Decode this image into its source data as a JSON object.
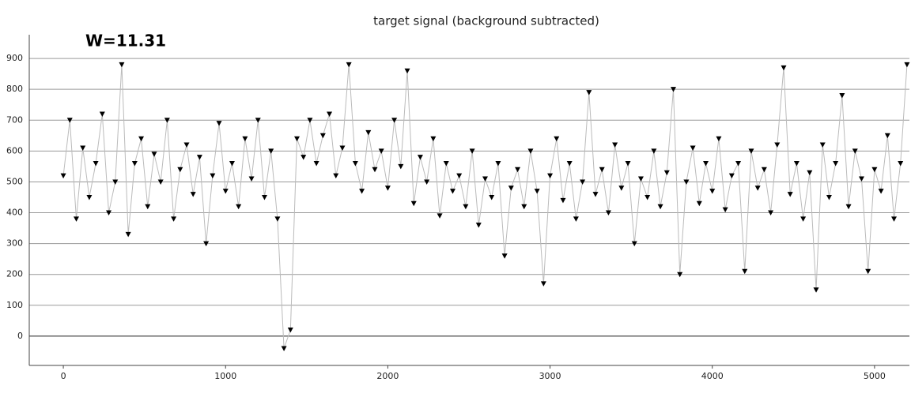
{
  "chart_data": {
    "type": "line",
    "title": "target signal (background subtracted)",
    "annotation": "W=11.31",
    "x": [
      0,
      40,
      80,
      120,
      160,
      200,
      240,
      280,
      320,
      360,
      400,
      440,
      480,
      520,
      560,
      600,
      640,
      680,
      720,
      760,
      800,
      840,
      880,
      920,
      960,
      1000,
      1040,
      1080,
      1120,
      1160,
      1200,
      1240,
      1280,
      1320,
      1360,
      1400,
      1440,
      1480,
      1520,
      1560,
      1600,
      1640,
      1680,
      1720,
      1760,
      1800,
      1840,
      1880,
      1920,
      1960,
      2000,
      2040,
      2080,
      2120,
      2160,
      2200,
      2240,
      2280,
      2320,
      2360,
      2400,
      2440,
      2480,
      2520,
      2560,
      2600,
      2640,
      2680,
      2720,
      2760,
      2800,
      2840,
      2880,
      2920,
      2960,
      3000,
      3040,
      3080,
      3120,
      3160,
      3200,
      3240,
      3280,
      3320,
      3360,
      3400,
      3440,
      3480,
      3520,
      3560,
      3600,
      3640,
      3680,
      3720,
      3760,
      3800,
      3840,
      3880,
      3920,
      3960,
      4000,
      4040,
      4080,
      4120,
      4160,
      4200,
      4240,
      4280,
      4320,
      4360,
      4400,
      4440,
      4480,
      4520,
      4560,
      4600,
      4640,
      4680,
      4720,
      4760,
      4800,
      4840,
      4880,
      4920,
      4960,
      5000,
      5040,
      5080,
      5120,
      5160,
      5200
    ],
    "values": [
      520,
      700,
      380,
      610,
      450,
      560,
      720,
      400,
      500,
      880,
      330,
      560,
      640,
      420,
      590,
      500,
      700,
      380,
      540,
      620,
      460,
      580,
      300,
      520,
      690,
      470,
      560,
      420,
      640,
      510,
      700,
      450,
      600,
      380,
      -40,
      20,
      640,
      580,
      700,
      560,
      650,
      720,
      520,
      610,
      880,
      560,
      470,
      660,
      540,
      600,
      480,
      700,
      550,
      860,
      430,
      580,
      500,
      640,
      390,
      560,
      470,
      520,
      420,
      600,
      360,
      510,
      450,
      560,
      260,
      480,
      540,
      420,
      600,
      470,
      170,
      520,
      640,
      440,
      560,
      380,
      500,
      790,
      460,
      540,
      400,
      620,
      480,
      560,
      300,
      510,
      450,
      600,
      420,
      530,
      800,
      200,
      500,
      610,
      430,
      560,
      470,
      640,
      410,
      520,
      560,
      210,
      600,
      480,
      540,
      400,
      620,
      870,
      460,
      560,
      380,
      530,
      150,
      620,
      450,
      560,
      780,
      420,
      600,
      510,
      210,
      540,
      470,
      650,
      380,
      560,
      880
    ],
    "color": "#000000",
    "line_color": "#bbbbbb",
    "xlim": [
      -210,
      5215
    ],
    "ylim": [
      -95,
      977
    ],
    "xticks": [
      0,
      1000,
      2000,
      3000,
      4000,
      5000
    ],
    "yticks": [
      0,
      100,
      200,
      300,
      400,
      500,
      600,
      700,
      800,
      900
    ],
    "grid": true
  }
}
